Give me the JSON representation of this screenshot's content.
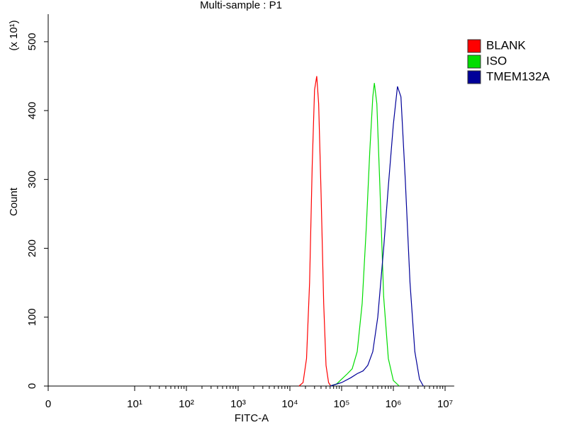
{
  "chart_data": {
    "type": "line",
    "title": "Multi-sample : P1",
    "x_label": "FITC-A",
    "y_label": "Count",
    "y_multiplier": "(x 10¹)",
    "xscale": "biexponential",
    "xlim": [
      0,
      15000000
    ],
    "ylim": [
      0,
      540
    ],
    "xticks": [
      0,
      {
        "value": 10,
        "label": "10¹"
      },
      {
        "value": 100,
        "label": "10²"
      },
      {
        "value": 1000,
        "label": "10³"
      },
      {
        "value": 10000,
        "label": "10⁴"
      },
      {
        "value": 100000,
        "label": "10⁵"
      },
      {
        "value": 1000000,
        "label": "10⁶"
      },
      {
        "value": 10000000,
        "label": "10⁷"
      }
    ],
    "yticks": [
      0,
      100,
      200,
      300,
      400,
      500
    ],
    "legend": "right",
    "series": [
      {
        "name": "BLANK",
        "color": "#ff0000",
        "x": [
          15000,
          18000,
          21000,
          24000,
          27000,
          30000,
          33000,
          36000,
          40000,
          45000,
          50000,
          56000,
          62000
        ],
        "values": [
          0,
          5,
          40,
          150,
          320,
          430,
          450,
          410,
          280,
          120,
          30,
          5,
          0
        ]
      },
      {
        "name": "ISO",
        "color": "#00dd00",
        "x": [
          60000,
          80000,
          100000,
          130000,
          160000,
          200000,
          250000,
          300000,
          350000,
          400000,
          430000,
          480000,
          550000,
          650000,
          800000,
          1000000,
          1300000
        ],
        "values": [
          0,
          3,
          10,
          18,
          25,
          50,
          120,
          230,
          340,
          420,
          440,
          410,
          290,
          130,
          40,
          8,
          0
        ]
      },
      {
        "name": "TMEM132A",
        "color": "#000099",
        "x": [
          60000,
          100000,
          150000,
          200000,
          260000,
          320000,
          400000,
          500000,
          650000,
          800000,
          1000000,
          1200000,
          1400000,
          1700000,
          2100000,
          2600000,
          3200000,
          3800000
        ],
        "values": [
          0,
          5,
          12,
          18,
          22,
          30,
          50,
          100,
          200,
          290,
          380,
          435,
          420,
          300,
          150,
          50,
          10,
          0
        ]
      }
    ]
  }
}
